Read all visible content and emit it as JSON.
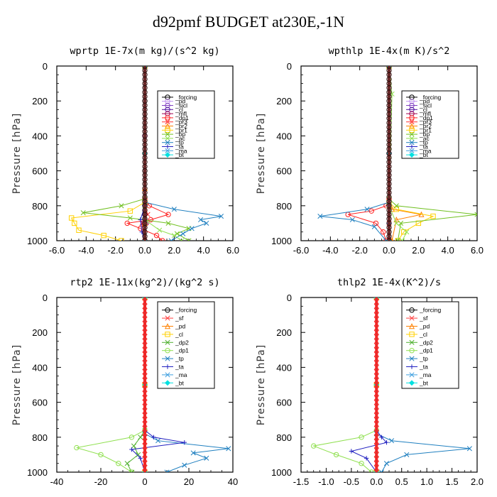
{
  "title": "d92pmf  BUDGET at230E,-1N",
  "colors": {
    "forcing": "#000000",
    "pd": "#c090f0",
    "sicl": "#8040c0",
    "cl": "#5010a0",
    "mfl": "#a00050",
    "dp1": "#ff2020",
    "pr3": "#ff3030",
    "pr2": "#ff8000",
    "pr1": "#ffd000",
    "bp": "#70c020",
    "ac": "#90e050",
    "tp": "#2080c0",
    "ta": "#2020c0",
    "ma": "#40a0e0",
    "bt": "#00e0e0",
    "sf": "#ff4040",
    "dp2": "#50b030",
    "thick": "#e03030"
  },
  "chart_data": [
    {
      "type": "line",
      "title": "wprtp  1E-7x(m kg)/(s^2 kg)",
      "ylabel": "Pressure [hPa]",
      "xlim": [
        -6,
        6
      ],
      "ylim": [
        1000,
        0
      ],
      "xticks": [
        "-6.0",
        "-4.0",
        "-2.0",
        "0.0",
        "2.0",
        "4.0",
        "6.0"
      ],
      "yticks": [
        "0",
        "200",
        "400",
        "600",
        "800",
        "1000"
      ],
      "series": [
        {
          "name": "_forcing",
          "color": "forcing",
          "marker": "circle",
          "x": [
            0,
            0,
            0,
            0,
            0,
            0,
            0,
            0
          ],
          "y": [
            0,
            200,
            400,
            600,
            800,
            850,
            900,
            1000
          ]
        },
        {
          "name": "_pd",
          "color": "pd",
          "marker": "circle",
          "x": [
            0,
            0,
            0,
            0
          ],
          "y": [
            0,
            400,
            800,
            1000
          ]
        },
        {
          "name": "_sicl",
          "color": "sicl",
          "marker": "circle",
          "x": [
            0,
            0,
            0,
            0
          ],
          "y": [
            0,
            400,
            800,
            1000
          ]
        },
        {
          "name": "_cl",
          "color": "cl",
          "marker": "circle",
          "x": [
            0,
            0,
            -0.1,
            0
          ],
          "y": [
            0,
            400,
            900,
            1000
          ]
        },
        {
          "name": "_mfl",
          "color": "mfl",
          "marker": "circle",
          "x": [
            0,
            0,
            0.1,
            0
          ],
          "y": [
            0,
            400,
            900,
            1000
          ]
        },
        {
          "name": "_dp1",
          "color": "dp1",
          "marker": "circle",
          "x": [
            0,
            0,
            0.3,
            1.6,
            0.4,
            -1.2,
            -0.3,
            0.8,
            1.2
          ],
          "y": [
            0,
            760,
            800,
            850,
            880,
            900,
            930,
            970,
            1000
          ]
        },
        {
          "name": "_pr3",
          "color": "pr3",
          "marker": "x",
          "x": [
            0,
            0,
            0.2,
            -0.2,
            0
          ],
          "y": [
            0,
            800,
            850,
            900,
            1000
          ]
        },
        {
          "name": "_pr2",
          "color": "pr2",
          "marker": "triangle",
          "x": [
            0,
            0,
            0,
            0
          ],
          "y": [
            0,
            700,
            900,
            1000
          ]
        },
        {
          "name": "_pr1",
          "color": "pr1",
          "marker": "square",
          "x": [
            0,
            0,
            -1.0,
            -5.0,
            -4.8,
            -4.5,
            -2.8,
            -1.6
          ],
          "y": [
            0,
            780,
            830,
            870,
            900,
            940,
            970,
            1000
          ]
        },
        {
          "name": "_bp",
          "color": "bp",
          "marker": "x",
          "x": [
            0,
            0,
            -1.6,
            -4.2,
            -1.0,
            1.6,
            3.0,
            2.2,
            3.0
          ],
          "y": [
            0,
            760,
            800,
            840,
            870,
            900,
            930,
            960,
            1000
          ]
        },
        {
          "name": "_ac",
          "color": "ac",
          "marker": "x",
          "x": [
            0,
            0,
            0,
            1.0,
            2.0,
            2.5
          ],
          "y": [
            0,
            800,
            880,
            940,
            970,
            1000
          ]
        },
        {
          "name": "_tp",
          "color": "tp",
          "marker": "x",
          "x": [
            0,
            0,
            2.0,
            5.2,
            3.8,
            4.2,
            3.2,
            2.6,
            1.8
          ],
          "y": [
            0,
            780,
            820,
            860,
            880,
            900,
            930,
            960,
            1000
          ]
        },
        {
          "name": "_ta",
          "color": "ta",
          "marker": "plus",
          "x": [
            0,
            0,
            -0.3,
            -0.2,
            0
          ],
          "y": [
            0,
            800,
            880,
            950,
            1000
          ]
        },
        {
          "name": "_ma",
          "color": "ma",
          "marker": "none",
          "x": [
            0,
            0,
            0
          ],
          "y": [
            0,
            800,
            1000
          ]
        },
        {
          "name": "_bt",
          "color": "bt",
          "marker": "diamond",
          "x": [
            0,
            0,
            0
          ],
          "y": [
            0,
            500,
            1000
          ]
        }
      ]
    },
    {
      "type": "line",
      "title": "wpthlp  1E-4x(m K)/s^2",
      "ylabel": "Pressure [hPa]",
      "xlim": [
        -6,
        6
      ],
      "ylim": [
        1000,
        0
      ],
      "xticks": [
        "-6.0",
        "-4.0",
        "-2.0",
        "0.0",
        "2.0",
        "4.0",
        "6.0"
      ],
      "yticks": [
        "0",
        "200",
        "400",
        "600",
        "800",
        "1000"
      ],
      "series": [
        {
          "name": "_forcing",
          "color": "forcing",
          "marker": "circle",
          "x": [
            0,
            0,
            0
          ],
          "y": [
            0,
            500,
            1000
          ]
        },
        {
          "name": "_pd",
          "color": "pd",
          "marker": "circle",
          "x": [
            0,
            0,
            0
          ],
          "y": [
            0,
            500,
            1000
          ]
        },
        {
          "name": "_sicl",
          "color": "sicl",
          "marker": "circle",
          "x": [
            0,
            0,
            0
          ],
          "y": [
            0,
            500,
            1000
          ]
        },
        {
          "name": "_cl",
          "color": "cl",
          "marker": "circle",
          "x": [
            0,
            0,
            0
          ],
          "y": [
            0,
            500,
            1000
          ]
        },
        {
          "name": "_mfl",
          "color": "mfl",
          "marker": "circle",
          "x": [
            0,
            0,
            0
          ],
          "y": [
            0,
            500,
            1000
          ]
        },
        {
          "name": "_dp1",
          "color": "dp1",
          "marker": "circle",
          "x": [
            0,
            0,
            -0.2,
            -1.2,
            -2.8,
            -0.9,
            -0.4,
            -0.2
          ],
          "y": [
            0,
            760,
            800,
            830,
            850,
            900,
            950,
            1000
          ]
        },
        {
          "name": "_pr3",
          "color": "pr3",
          "marker": "x",
          "x": [
            0,
            0,
            0,
            0
          ],
          "y": [
            0,
            800,
            900,
            1000
          ]
        },
        {
          "name": "_pr2",
          "color": "pr2",
          "marker": "triangle",
          "x": [
            0,
            0,
            0.2,
            2.2,
            0.5,
            0.2
          ],
          "y": [
            0,
            780,
            820,
            850,
            880,
            1000
          ]
        },
        {
          "name": "_pr1",
          "color": "pr1",
          "marker": "square",
          "x": [
            0,
            0,
            0.5,
            3.0,
            2.0,
            1.0,
            0.6
          ],
          "y": [
            0,
            780,
            820,
            860,
            900,
            950,
            1000
          ]
        },
        {
          "name": "_bp",
          "color": "bp",
          "marker": "x",
          "x": [
            0,
            0,
            0.5,
            6.0,
            0.8,
            0.6
          ],
          "y": [
            0,
            760,
            800,
            850,
            900,
            1000
          ]
        },
        {
          "name": "_ac",
          "color": "ac",
          "marker": "x",
          "x": [
            0,
            0.2,
            0,
            0.5,
            1.2,
            0.9
          ],
          "y": [
            0,
            160,
            800,
            900,
            950,
            1000
          ]
        },
        {
          "name": "_tp",
          "color": "tp",
          "marker": "x",
          "x": [
            0,
            0,
            -1.5,
            -4.7,
            -2.5,
            -1.0,
            -0.2
          ],
          "y": [
            0,
            780,
            820,
            860,
            880,
            920,
            1000
          ]
        },
        {
          "name": "_ta",
          "color": "ta",
          "marker": "plus",
          "x": [
            0,
            0,
            0,
            0
          ],
          "y": [
            0,
            800,
            900,
            1000
          ]
        },
        {
          "name": "_ma",
          "color": "ma",
          "marker": "none",
          "x": [
            0,
            0,
            0
          ],
          "y": [
            0,
            800,
            1000
          ]
        },
        {
          "name": "_bt",
          "color": "bt",
          "marker": "diamond",
          "x": [
            0,
            0,
            0
          ],
          "y": [
            0,
            500,
            1000
          ]
        }
      ]
    },
    {
      "type": "line",
      "title": "rtp2  1E-11x(kg^2)/(kg^2 s)",
      "ylabel": "Pressure [hPa]",
      "xlim": [
        -40,
        40
      ],
      "ylim": [
        1000,
        0
      ],
      "xticks": [
        "-40",
        "-20",
        "0",
        "20",
        "40"
      ],
      "yticks": [
        "0",
        "200",
        "400",
        "600",
        "800",
        "1000"
      ],
      "series": [
        {
          "name": "_forcing",
          "color": "forcing",
          "marker": "circle",
          "x": [
            0,
            0,
            0
          ],
          "y": [
            0,
            500,
            1000
          ]
        },
        {
          "name": "_sf",
          "color": "sf",
          "marker": "x",
          "x": [
            0,
            0,
            0
          ],
          "y": [
            0,
            500,
            1000
          ]
        },
        {
          "name": "_pd",
          "color": "pr2",
          "marker": "triangle",
          "x": [
            0,
            0,
            0
          ],
          "y": [
            0,
            500,
            1000
          ]
        },
        {
          "name": "_cl",
          "color": "pr1",
          "marker": "square",
          "x": [
            0,
            0,
            0
          ],
          "y": [
            0,
            500,
            1000
          ]
        },
        {
          "name": "_dp2",
          "color": "dp2",
          "marker": "x",
          "x": [
            0,
            0,
            -2,
            -5,
            -3,
            -8,
            -6
          ],
          "y": [
            0,
            760,
            800,
            850,
            900,
            950,
            1000
          ]
        },
        {
          "name": "_dp1",
          "color": "ac",
          "marker": "circle",
          "x": [
            0,
            0,
            -6,
            -31,
            -20,
            -12,
            -6
          ],
          "y": [
            0,
            760,
            800,
            860,
            900,
            950,
            1000
          ]
        },
        {
          "name": "_tp",
          "color": "tp",
          "marker": "x",
          "x": [
            0,
            0,
            6,
            38,
            22,
            28,
            18,
            10
          ],
          "y": [
            0,
            780,
            820,
            865,
            890,
            920,
            960,
            1000
          ]
        },
        {
          "name": "_ta",
          "color": "ta",
          "marker": "plus",
          "x": [
            0,
            0,
            4,
            18,
            -6,
            -2,
            0
          ],
          "y": [
            0,
            760,
            800,
            830,
            870,
            920,
            1000
          ]
        },
        {
          "name": "_ma",
          "color": "ma",
          "marker": "none",
          "x": [
            0,
            0,
            0
          ],
          "y": [
            0,
            800,
            1000
          ]
        },
        {
          "name": "_bt",
          "color": "bt",
          "marker": "diamond",
          "x": [
            0,
            0,
            0
          ],
          "y": [
            0,
            500,
            1000
          ]
        }
      ]
    },
    {
      "type": "line",
      "title": "thlp2  1E-4x(K^2)/s",
      "ylabel": "Pressure [hPa]",
      "xlim": [
        -1.5,
        2.0
      ],
      "ylim": [
        1000,
        0
      ],
      "xticks": [
        "-1.5",
        "-1.0",
        "-0.5",
        "0.0",
        "0.5",
        "1.0",
        "1.5",
        "2.0"
      ],
      "yticks": [
        "0",
        "200",
        "400",
        "600",
        "800",
        "1000"
      ],
      "series": [
        {
          "name": "_forcing",
          "color": "forcing",
          "marker": "circle",
          "x": [
            0,
            0,
            0
          ],
          "y": [
            0,
            500,
            1000
          ]
        },
        {
          "name": "_sf",
          "color": "sf",
          "marker": "x",
          "x": [
            0,
            0,
            0
          ],
          "y": [
            0,
            500,
            1000
          ]
        },
        {
          "name": "_pd",
          "color": "pr2",
          "marker": "triangle",
          "x": [
            0,
            0,
            0
          ],
          "y": [
            0,
            500,
            1000
          ]
        },
        {
          "name": "_cl",
          "color": "pr1",
          "marker": "square",
          "x": [
            0,
            0,
            0
          ],
          "y": [
            0,
            500,
            1000
          ]
        },
        {
          "name": "_dp2",
          "color": "dp2",
          "marker": "x",
          "x": [
            0,
            0,
            0,
            0
          ],
          "y": [
            0,
            800,
            900,
            1000
          ]
        },
        {
          "name": "_dp1",
          "color": "ac",
          "marker": "circle",
          "x": [
            0,
            0,
            -0.3,
            -1.25,
            -0.8,
            -0.3,
            -0.1
          ],
          "y": [
            0,
            760,
            800,
            850,
            900,
            950,
            1000
          ]
        },
        {
          "name": "_tp",
          "color": "tp",
          "marker": "x",
          "x": [
            0,
            0,
            0.3,
            1.85,
            0.6,
            0.2,
            0.1
          ],
          "y": [
            0,
            780,
            820,
            865,
            900,
            950,
            1000
          ]
        },
        {
          "name": "_ta",
          "color": "ta",
          "marker": "plus",
          "x": [
            0,
            0,
            0.1,
            0.2,
            -0.5,
            -0.2,
            0
          ],
          "y": [
            0,
            760,
            800,
            830,
            880,
            920,
            1000
          ]
        },
        {
          "name": "_ma",
          "color": "ma",
          "marker": "none",
          "x": [
            0,
            0,
            0
          ],
          "y": [
            0,
            800,
            1000
          ]
        },
        {
          "name": "_bt",
          "color": "bt",
          "marker": "diamond",
          "x": [
            0,
            0,
            0
          ],
          "y": [
            0,
            500,
            1000
          ]
        }
      ]
    }
  ]
}
